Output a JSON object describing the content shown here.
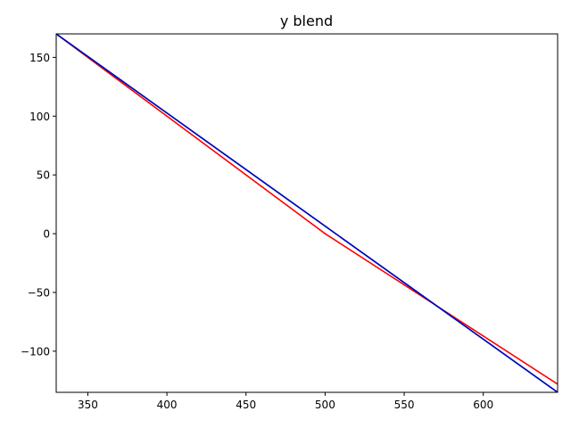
{
  "chart_data": {
    "type": "line",
    "title": "y blend",
    "xlabel": "",
    "ylabel": "",
    "xlim": [
      330,
      647
    ],
    "ylim": [
      -135,
      170
    ],
    "grid": false,
    "legend": "none",
    "x_ticks": [
      350,
      400,
      450,
      500,
      550,
      600
    ],
    "y_ticks": [
      -100,
      -50,
      0,
      50,
      100,
      150
    ],
    "x_tick_labels": [
      "350",
      "400",
      "450",
      "500",
      "550",
      "600"
    ],
    "y_tick_labels": [
      "−100",
      "−50",
      "0",
      "50",
      "100",
      "150"
    ],
    "series": [
      {
        "color": "#ff0000",
        "points": [
          [
            330,
            170
          ],
          [
            500,
            0
          ],
          [
            647,
            -128
          ]
        ]
      },
      {
        "color": "#00b000",
        "points": [
          [
            330,
            170
          ],
          [
            647,
            -135
          ]
        ]
      },
      {
        "color": "#0000cc",
        "points": [
          [
            330,
            170
          ],
          [
            647,
            -135
          ]
        ]
      }
    ]
  }
}
